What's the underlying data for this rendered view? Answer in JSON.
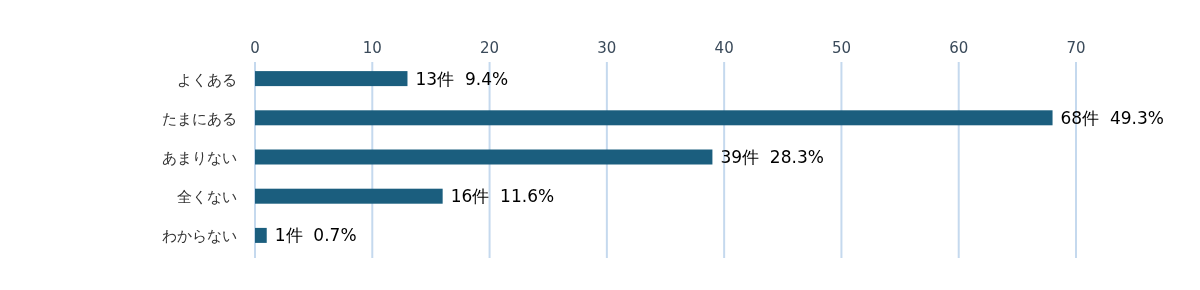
{
  "chart_data": {
    "type": "bar",
    "orientation": "horizontal",
    "categories": [
      "よくある",
      "たまにある",
      "あまりない",
      "全くない",
      "わからない"
    ],
    "values": [
      13,
      68,
      39,
      16,
      1
    ],
    "value_labels": [
      "13件  9.4%",
      "68件  49.3%",
      "39件  28.3%",
      "16件  11.6%",
      "1件  0.7%"
    ],
    "color": "#1b5e7e",
    "xlim": [
      0,
      70
    ],
    "xticks": [
      0,
      10,
      20,
      30,
      40,
      50,
      60,
      70
    ],
    "grid": "x"
  }
}
